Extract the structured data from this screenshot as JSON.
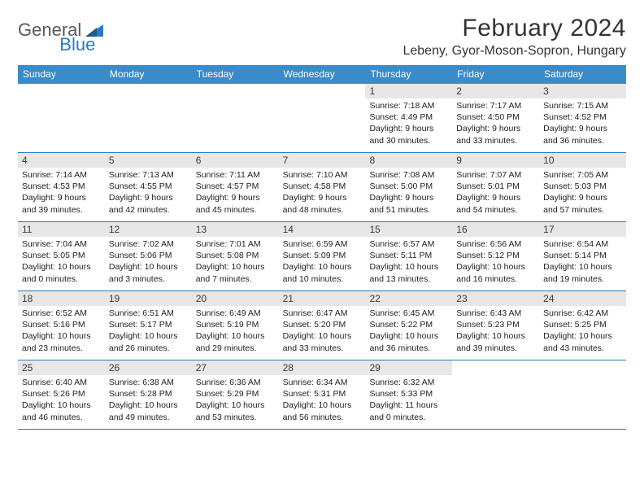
{
  "brand": {
    "part1": "General",
    "part2": "Blue"
  },
  "title": "February 2024",
  "location": "Lebeny, Gyor-Moson-Sopron, Hungary",
  "colors": {
    "header_bg": "#3a8bc9",
    "header_text": "#ffffff",
    "daynum_bg": "#e7e7e7",
    "rule": "#2a7bc4",
    "brand_gray": "#5a5a5a",
    "brand_blue": "#2a7bc4"
  },
  "weekdays": [
    "Sunday",
    "Monday",
    "Tuesday",
    "Wednesday",
    "Thursday",
    "Friday",
    "Saturday"
  ],
  "weeks": [
    [
      null,
      null,
      null,
      null,
      {
        "n": "1",
        "sr": "7:18 AM",
        "ss": "4:49 PM",
        "dl": "9 hours and 30 minutes."
      },
      {
        "n": "2",
        "sr": "7:17 AM",
        "ss": "4:50 PM",
        "dl": "9 hours and 33 minutes."
      },
      {
        "n": "3",
        "sr": "7:15 AM",
        "ss": "4:52 PM",
        "dl": "9 hours and 36 minutes."
      }
    ],
    [
      {
        "n": "4",
        "sr": "7:14 AM",
        "ss": "4:53 PM",
        "dl": "9 hours and 39 minutes."
      },
      {
        "n": "5",
        "sr": "7:13 AM",
        "ss": "4:55 PM",
        "dl": "9 hours and 42 minutes."
      },
      {
        "n": "6",
        "sr": "7:11 AM",
        "ss": "4:57 PM",
        "dl": "9 hours and 45 minutes."
      },
      {
        "n": "7",
        "sr": "7:10 AM",
        "ss": "4:58 PM",
        "dl": "9 hours and 48 minutes."
      },
      {
        "n": "8",
        "sr": "7:08 AM",
        "ss": "5:00 PM",
        "dl": "9 hours and 51 minutes."
      },
      {
        "n": "9",
        "sr": "7:07 AM",
        "ss": "5:01 PM",
        "dl": "9 hours and 54 minutes."
      },
      {
        "n": "10",
        "sr": "7:05 AM",
        "ss": "5:03 PM",
        "dl": "9 hours and 57 minutes."
      }
    ],
    [
      {
        "n": "11",
        "sr": "7:04 AM",
        "ss": "5:05 PM",
        "dl": "10 hours and 0 minutes."
      },
      {
        "n": "12",
        "sr": "7:02 AM",
        "ss": "5:06 PM",
        "dl": "10 hours and 3 minutes."
      },
      {
        "n": "13",
        "sr": "7:01 AM",
        "ss": "5:08 PM",
        "dl": "10 hours and 7 minutes."
      },
      {
        "n": "14",
        "sr": "6:59 AM",
        "ss": "5:09 PM",
        "dl": "10 hours and 10 minutes."
      },
      {
        "n": "15",
        "sr": "6:57 AM",
        "ss": "5:11 PM",
        "dl": "10 hours and 13 minutes."
      },
      {
        "n": "16",
        "sr": "6:56 AM",
        "ss": "5:12 PM",
        "dl": "10 hours and 16 minutes."
      },
      {
        "n": "17",
        "sr": "6:54 AM",
        "ss": "5:14 PM",
        "dl": "10 hours and 19 minutes."
      }
    ],
    [
      {
        "n": "18",
        "sr": "6:52 AM",
        "ss": "5:16 PM",
        "dl": "10 hours and 23 minutes."
      },
      {
        "n": "19",
        "sr": "6:51 AM",
        "ss": "5:17 PM",
        "dl": "10 hours and 26 minutes."
      },
      {
        "n": "20",
        "sr": "6:49 AM",
        "ss": "5:19 PM",
        "dl": "10 hours and 29 minutes."
      },
      {
        "n": "21",
        "sr": "6:47 AM",
        "ss": "5:20 PM",
        "dl": "10 hours and 33 minutes."
      },
      {
        "n": "22",
        "sr": "6:45 AM",
        "ss": "5:22 PM",
        "dl": "10 hours and 36 minutes."
      },
      {
        "n": "23",
        "sr": "6:43 AM",
        "ss": "5:23 PM",
        "dl": "10 hours and 39 minutes."
      },
      {
        "n": "24",
        "sr": "6:42 AM",
        "ss": "5:25 PM",
        "dl": "10 hours and 43 minutes."
      }
    ],
    [
      {
        "n": "25",
        "sr": "6:40 AM",
        "ss": "5:26 PM",
        "dl": "10 hours and 46 minutes."
      },
      {
        "n": "26",
        "sr": "6:38 AM",
        "ss": "5:28 PM",
        "dl": "10 hours and 49 minutes."
      },
      {
        "n": "27",
        "sr": "6:36 AM",
        "ss": "5:29 PM",
        "dl": "10 hours and 53 minutes."
      },
      {
        "n": "28",
        "sr": "6:34 AM",
        "ss": "5:31 PM",
        "dl": "10 hours and 56 minutes."
      },
      {
        "n": "29",
        "sr": "6:32 AM",
        "ss": "5:33 PM",
        "dl": "11 hours and 0 minutes."
      },
      null,
      null
    ]
  ],
  "labels": {
    "sunrise": "Sunrise:",
    "sunset": "Sunset:",
    "daylight": "Daylight:"
  }
}
